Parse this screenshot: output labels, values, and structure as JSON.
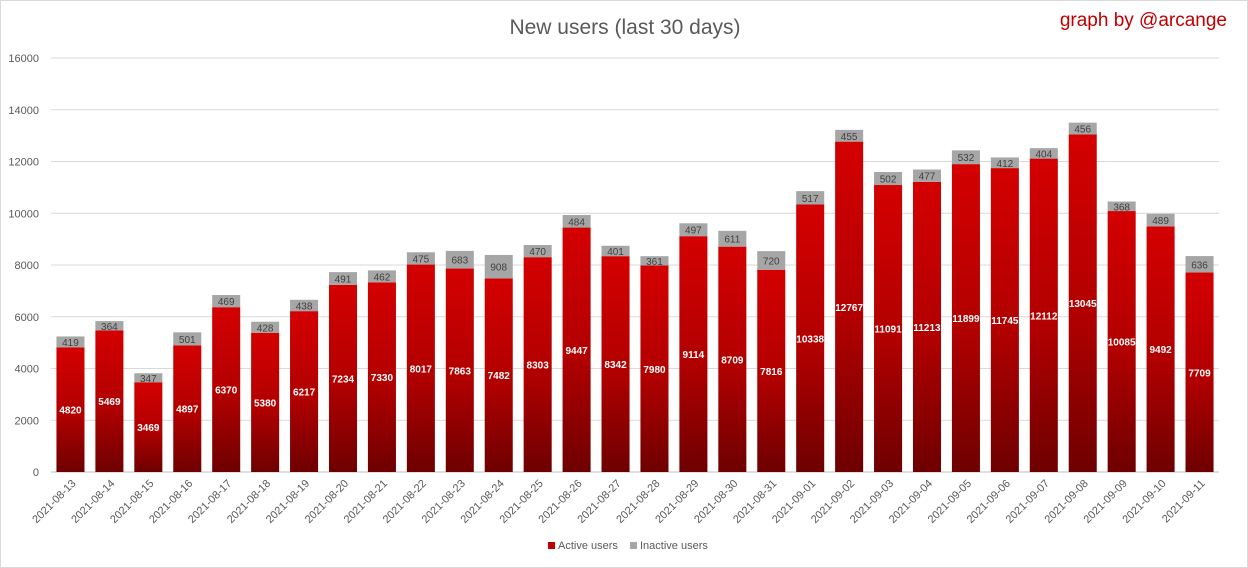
{
  "chart_data": {
    "type": "bar",
    "stacked": true,
    "title": "New users (last 30 days)",
    "credit": "graph by @arcange",
    "ylim": [
      0,
      16000
    ],
    "yticks": [
      0,
      2000,
      4000,
      6000,
      8000,
      10000,
      12000,
      14000,
      16000
    ],
    "grid": true,
    "legend_position": "bottom",
    "categories": [
      "2021-08-13",
      "2021-08-14",
      "2021-08-15",
      "2021-08-16",
      "2021-08-17",
      "2021-08-18",
      "2021-08-19",
      "2021-08-20",
      "2021-08-21",
      "2021-08-22",
      "2021-08-23",
      "2021-08-24",
      "2021-08-25",
      "2021-08-26",
      "2021-08-27",
      "2021-08-28",
      "2021-08-29",
      "2021-08-30",
      "2021-08-31",
      "2021-09-01",
      "2021-09-02",
      "2021-09-03",
      "2021-09-04",
      "2021-09-05",
      "2021-09-06",
      "2021-09-07",
      "2021-09-08",
      "2021-09-09",
      "2021-09-10",
      "2021-09-11"
    ],
    "series": [
      {
        "name": "Active users",
        "color": "#c00000",
        "values": [
          4820,
          5469,
          3469,
          4897,
          6370,
          5380,
          6217,
          7234,
          7330,
          8017,
          7863,
          7482,
          8303,
          9447,
          8342,
          7980,
          9114,
          8709,
          7816,
          10338,
          12767,
          11091,
          11213,
          11899,
          11745,
          12112,
          13045,
          10085,
          9492,
          7709
        ]
      },
      {
        "name": "Inactive users",
        "color": "#a6a6a6",
        "values": [
          419,
          364,
          347,
          501,
          469,
          428,
          438,
          491,
          462,
          475,
          683,
          908,
          470,
          484,
          401,
          361,
          497,
          611,
          720,
          517,
          455,
          502,
          477,
          532,
          412,
          404,
          456,
          368,
          489,
          636
        ]
      }
    ]
  }
}
